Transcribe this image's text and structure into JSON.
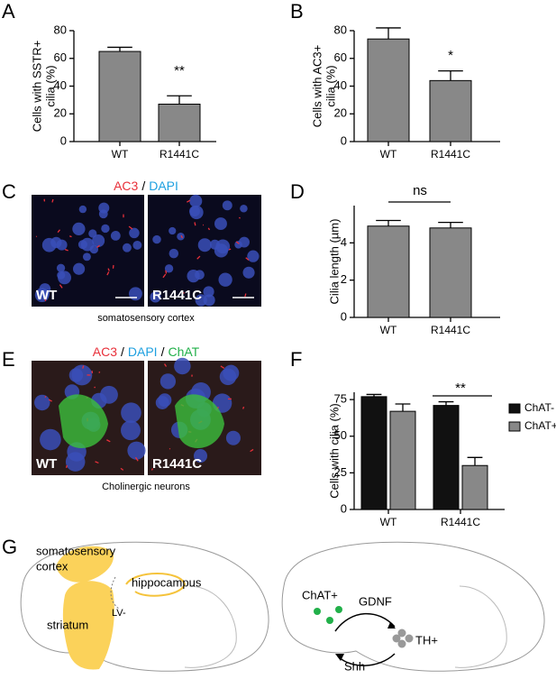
{
  "panels": [
    "A",
    "B",
    "C",
    "D",
    "E",
    "F",
    "G"
  ],
  "chart_data": [
    {
      "type": "bar",
      "ylabel": [
        "Cells with SSTR+",
        "cilia (%)"
      ],
      "categories": [
        "WT",
        "R1441C"
      ],
      "values": [
        65,
        27
      ],
      "errors": [
        3,
        6
      ],
      "color": "#888888",
      "ylim": [
        0,
        80
      ],
      "yticks": [
        0,
        20,
        40,
        60,
        80
      ],
      "annotation": "**"
    },
    {
      "type": "bar",
      "ylabel": [
        "Cells with AC3+",
        "cilia (%)"
      ],
      "categories": [
        "WT",
        "R1441C"
      ],
      "values": [
        74,
        44
      ],
      "errors": [
        8,
        7
      ],
      "color": "#888888",
      "ylim": [
        0,
        80
      ],
      "yticks": [
        0,
        20,
        40,
        60,
        80
      ],
      "annotation": "*"
    },
    {
      "type": "bar",
      "ylabel": [
        "Cilia length (µm)"
      ],
      "categories": [
        "WT",
        "R1441C"
      ],
      "values": [
        4.9,
        4.8
      ],
      "errors": [
        0.3,
        0.3
      ],
      "color": "#888888",
      "ylim": [
        0,
        6
      ],
      "yticks": [
        0,
        2,
        4
      ],
      "annotation": "ns"
    },
    {
      "type": "bar",
      "ylabel": [
        "Cells with cilia (%)"
      ],
      "categories": [
        "WT",
        "R1441C"
      ],
      "series": [
        {
          "name": "ChAT-",
          "color": "#111111",
          "values": [
            77,
            71
          ],
          "errors": [
            1.5,
            2.5
          ]
        },
        {
          "name": "ChAT+",
          "color": "#888888",
          "values": [
            67,
            30
          ],
          "errors": [
            5,
            5.5
          ]
        }
      ],
      "ylim": [
        0,
        80
      ],
      "yticks": [
        0,
        25,
        50,
        75
      ],
      "annotation": "**"
    }
  ],
  "images": [
    {
      "title": [
        "AC3",
        "/",
        "DAPI"
      ],
      "labels": [
        "WT",
        "R1441C"
      ],
      "caption": "somatosensory cortex"
    },
    {
      "title": [
        "AC3",
        "/",
        "DAPI",
        "/",
        "ChAT"
      ],
      "labels": [
        "WT",
        "R1441C"
      ],
      "caption": "Cholinergic neurons"
    }
  ],
  "diagram_labels": [
    "somatosensory",
    "cortex",
    "hippocampus",
    "LV-",
    "striatum",
    "ChAT+",
    "GDNF",
    "Shh",
    "TH+"
  ]
}
